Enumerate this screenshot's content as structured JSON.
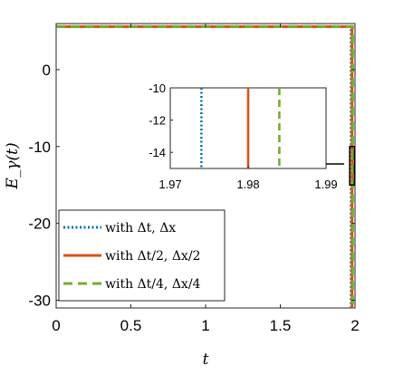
{
  "chart_data": {
    "type": "line",
    "xlabel": "t",
    "ylabel": "E_γ(t)",
    "xlim": [
      0,
      2
    ],
    "ylim": [
      -31,
      6
    ],
    "xticks": [
      0,
      0.5,
      1,
      1.5,
      2
    ],
    "yticks": [
      0,
      -10,
      -20,
      -30
    ],
    "xtick_labels": [
      "0",
      "0.5",
      "1",
      "1.5",
      "2"
    ],
    "ytick_labels": [
      "0",
      "-10",
      "-20",
      "-30"
    ],
    "grid": false,
    "legend_position": "bottom-left",
    "series": [
      {
        "name": "with Δt, Δx",
        "color": "#0072BD",
        "style": "dotted",
        "x": [
          0,
          1.9,
          1.974,
          1.974
        ],
        "y": [
          5.6,
          5.6,
          5.6,
          -31
        ]
      },
      {
        "name": "with Δt/2, Δx/2",
        "color": "#D95319",
        "style": "solid",
        "x": [
          0,
          1.9,
          1.98,
          1.98
        ],
        "y": [
          5.6,
          5.6,
          5.6,
          -31
        ]
      },
      {
        "name": "with Δt/4, Δx/4",
        "color": "#77AC30",
        "style": "dashed",
        "x": [
          0,
          1.9,
          1.984,
          1.984
        ],
        "y": [
          5.6,
          5.6,
          5.6,
          -31
        ]
      }
    ],
    "inset": {
      "xlim": [
        1.97,
        1.99
      ],
      "ylim": [
        -15,
        -10
      ],
      "xticks": [
        1.97,
        1.98,
        1.99
      ],
      "yticks": [
        -10,
        -12,
        -14
      ],
      "xtick_labels": [
        "1.97",
        "1.98",
        "1.99"
      ],
      "ytick_labels": [
        "-10",
        "-12",
        "-14"
      ],
      "zoom_region": {
        "x": [
          1.97,
          1.99
        ],
        "y": [
          -15,
          -10
        ]
      }
    }
  }
}
